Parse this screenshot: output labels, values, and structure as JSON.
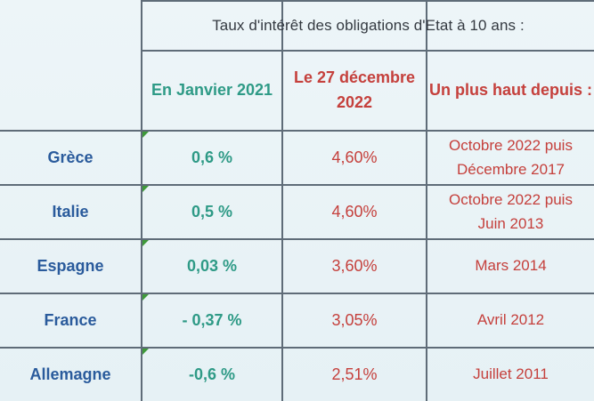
{
  "table": {
    "title": "Taux d'intérêt des obligations d'Etat à 10 ans :",
    "headers": {
      "jan2021": "En Janvier 2021",
      "dec2022_line1": "Le 27 décembre",
      "dec2022_line2": "2022",
      "highest_since": "Un plus haut depuis :"
    },
    "rows": [
      {
        "country": "Grèce",
        "jan2021": "0,6 %",
        "dec2022": "4,60%",
        "since_line1": "Octobre 2022 puis",
        "since_line2": "Décembre 2017"
      },
      {
        "country": "Italie",
        "jan2021": "0,5 %",
        "dec2022": "4,60%",
        "since_line1": "Octobre 2022 puis",
        "since_line2": "Juin 2013"
      },
      {
        "country": "Espagne",
        "jan2021": "0,03 %",
        "dec2022": "3,60%",
        "since_line1": "Mars 2014",
        "since_line2": ""
      },
      {
        "country": "France",
        "jan2021": "- 0,37 %",
        "dec2022": "3,05%",
        "since_line1": "Avril 2012",
        "since_line2": ""
      },
      {
        "country": "Allemagne",
        "jan2021": "-0,6 %",
        "dec2022": "2,51%",
        "since_line1": "Juillet 2011",
        "since_line2": ""
      }
    ]
  },
  "colors": {
    "background": "#e9f2f6",
    "grid": "#5f6c78",
    "green_text": "#2e9a86",
    "red_text": "#c5403c",
    "blue_text": "#2a5b9c",
    "flag": "#3f9a3a"
  }
}
